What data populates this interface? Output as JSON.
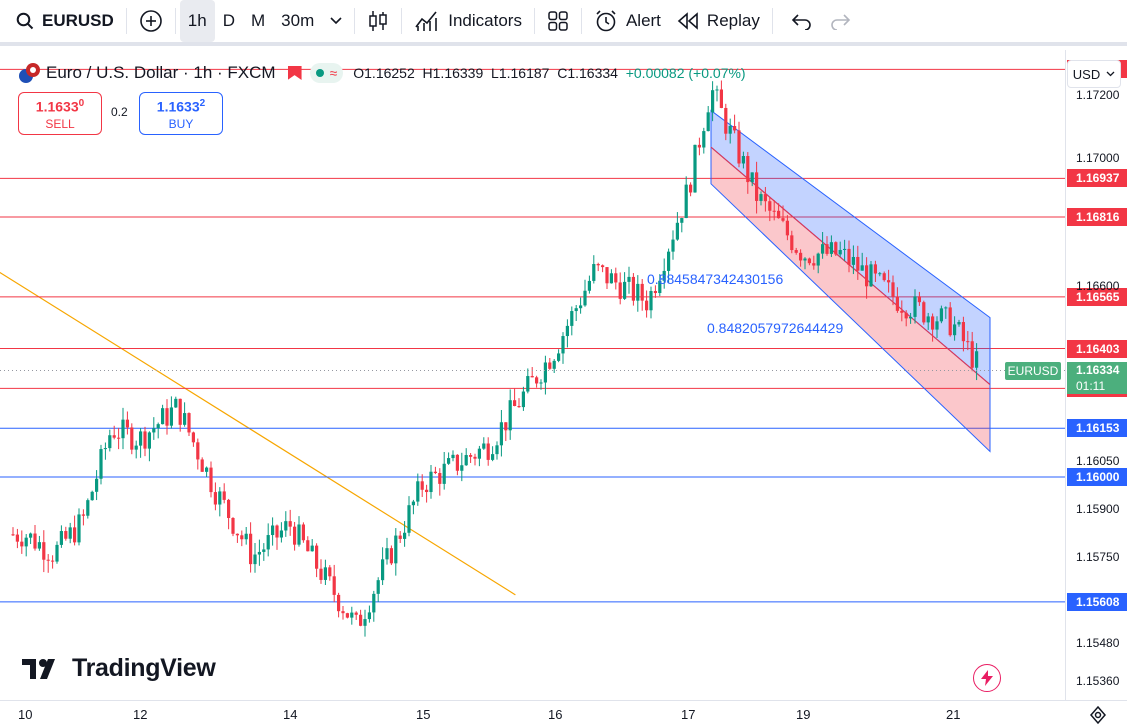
{
  "toolbar": {
    "symbol": "EURUSD",
    "intervals": [
      "1h",
      "D",
      "M",
      "30m"
    ],
    "indicators_label": "Indicators",
    "alert_label": "Alert",
    "replay_label": "Replay"
  },
  "legend": {
    "title": "Euro / U.S. Dollar · 1h · FXCM",
    "open": "O1.16252",
    "high": "H1.16339",
    "low": "L1.16187",
    "close": "C1.16334",
    "change": "+0.00082 (+0.07%)"
  },
  "trade": {
    "sell_price": "1.1633",
    "sell_price_sup": "0",
    "sell_label": "SELL",
    "spread": "0.2",
    "buy_price": "1.1633",
    "buy_price_sup": "2",
    "buy_label": "BUY"
  },
  "price_scale": {
    "currency": "USD",
    "ticks": [
      "1.17200",
      "1.17000",
      "1.16600",
      "1.16050",
      "1.15900",
      "1.15750",
      "1.15480",
      "1.15360"
    ],
    "current_symbol": "EURUSD",
    "current_price": "1.16334",
    "countdown": "01:11"
  },
  "time_scale": {
    "labels": [
      "10",
      "12",
      "14",
      "15",
      "16",
      "17",
      "19",
      "21"
    ]
  },
  "fib_labels": {
    "upper": "0.8845847342430156",
    "lower": "0.8482057972644429"
  },
  "logo_text": "TradingView",
  "colors": {
    "up": "#089981",
    "down": "#f23645",
    "resistance": "#f23645",
    "support": "#2962ff",
    "trendline": "#f7a600",
    "price_badge": "#4caf7d"
  },
  "chart_data": {
    "type": "candlestick",
    "symbol": "EURUSD",
    "interval": "1h",
    "ylim": [
      1.153,
      1.1734
    ],
    "x_labels": [
      "10",
      "12",
      "14",
      "15",
      "16",
      "17",
      "19",
      "21"
    ],
    "horizontal_levels": [
      {
        "price": 1.17279,
        "label": "1.17279",
        "kind": "resistance"
      },
      {
        "price": 1.16937,
        "label": "1.16937",
        "kind": "resistance"
      },
      {
        "price": 1.16816,
        "label": "1.16816",
        "kind": "resistance"
      },
      {
        "price": 1.16565,
        "label": "1.16565",
        "kind": "resistance"
      },
      {
        "price": 1.16403,
        "label": "1.16403",
        "kind": "resistance"
      },
      {
        "price": 1.16278,
        "label": "1.16278",
        "kind": "resistance"
      },
      {
        "price": 1.16153,
        "label": "1.16153",
        "kind": "support"
      },
      {
        "price": 1.16,
        "label": "1.16000",
        "kind": "support"
      },
      {
        "price": 1.15608,
        "label": "1.15608",
        "kind": "support"
      }
    ],
    "anchors": [
      {
        "label": "10",
        "close": 1.1582
      },
      {
        "label": "10.5",
        "close": 1.1576
      },
      {
        "label": "11",
        "close": 1.1586
      },
      {
        "label": "11.5",
        "close": 1.1615
      },
      {
        "label": "12",
        "close": 1.1612
      },
      {
        "label": "12.5",
        "close": 1.1622
      },
      {
        "label": "13",
        "close": 1.1596
      },
      {
        "label": "13.5",
        "close": 1.1575
      },
      {
        "label": "14",
        "close": 1.1585
      },
      {
        "label": "14.5",
        "close": 1.1553
      },
      {
        "label": "15",
        "close": 1.1598
      },
      {
        "label": "15.5",
        "close": 1.161
      },
      {
        "label": "16",
        "close": 1.164
      },
      {
        "label": "16.3",
        "close": 1.1665
      },
      {
        "label": "16.7",
        "close": 1.1655
      },
      {
        "label": "17",
        "close": 1.169
      },
      {
        "label": "17.4",
        "close": 1.1722
      },
      {
        "label": "18.2",
        "close": 1.1688
      },
      {
        "label": "19",
        "close": 1.167
      },
      {
        "label": "19.5",
        "close": 1.167
      },
      {
        "label": "20.3",
        "close": 1.1655
      },
      {
        "label": "21",
        "close": 1.1648
      },
      {
        "label": "21.3",
        "close": 1.16334
      }
    ],
    "trendline": {
      "from": {
        "x": "9.5",
        "price": 1.1672
      },
      "to": {
        "x": "15.7",
        "price": 1.1563
      }
    },
    "channel": {
      "upper_from": 1.1715,
      "upper_to": 1.165,
      "lower_from": 1.1692,
      "lower_to": 1.1608,
      "from_x": "17.4",
      "to_x": "21.4"
    }
  }
}
